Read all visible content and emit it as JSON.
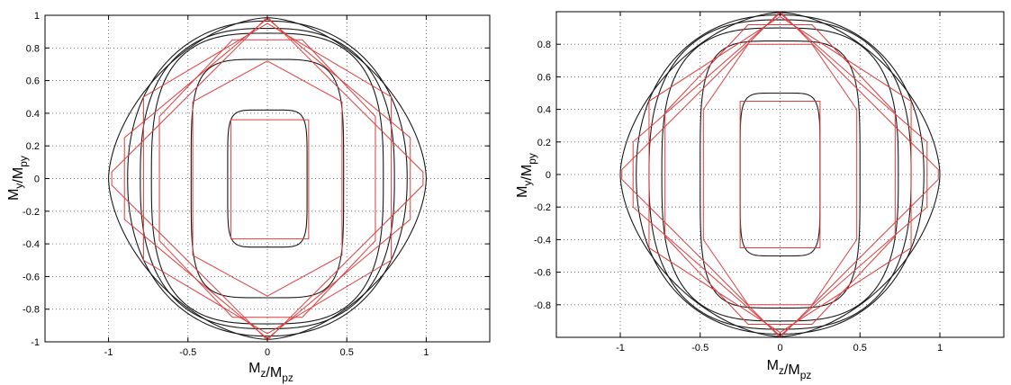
{
  "chart_data": [
    {
      "type": "line",
      "title": "",
      "xlabel": "M_z/M_pz",
      "ylabel": "M_y/M_py",
      "xlim": [
        -1.4,
        1.4
      ],
      "ylim": [
        -1.0,
        1.0
      ],
      "xticks": [
        -1,
        -0.5,
        0,
        0.5,
        1
      ],
      "yticks": [
        -1,
        -0.8,
        -0.6,
        -0.4,
        -0.2,
        0,
        0.2,
        0.4,
        0.6,
        0.8,
        1
      ],
      "xtick_labels": [
        "-1",
        "-0.5",
        "0",
        "0.5",
        "1"
      ],
      "ytick_labels": [
        "-1",
        "-0.8",
        "-0.6",
        "-0.4",
        "-0.2",
        "0",
        "0.2",
        "0.4",
        "0.6",
        "0.8",
        "1"
      ],
      "grid": true,
      "series": [
        {
          "color": "#1a1a1a",
          "kind": "smooth",
          "a": 1.0,
          "b": 0.985,
          "p": 1.7
        },
        {
          "color": "#1a1a1a",
          "kind": "smooth",
          "a": 0.88,
          "b": 0.965,
          "p": 2.2
        },
        {
          "color": "#1a1a1a",
          "kind": "smooth",
          "a": 0.8,
          "b": 0.92,
          "p": 2.6
        },
        {
          "color": "#1a1a1a",
          "kind": "smooth",
          "a": 0.73,
          "b": 0.89,
          "p": 3.0
        },
        {
          "color": "#1a1a1a",
          "kind": "smooth",
          "a": 0.48,
          "b": 0.73,
          "p": 4.5
        },
        {
          "color": "#1a1a1a",
          "kind": "smooth",
          "a": 0.25,
          "b": 0.42,
          "p": 6.0
        },
        {
          "color": "#e03c3c",
          "kind": "poly",
          "x": [
            0.26,
            0.26,
            -0.23,
            -0.23,
            0.26
          ],
          "y": [
            0.36,
            -0.37,
            -0.37,
            0.36,
            0.36
          ]
        },
        {
          "color": "#e03c3c",
          "kind": "poly",
          "x": [
            0,
            0.47,
            0.47,
            0,
            -0.47,
            -0.47,
            0
          ],
          "y": [
            0.72,
            0.47,
            -0.47,
            -0.72,
            -0.47,
            0.47,
            0.72
          ]
        },
        {
          "color": "#e03c3c",
          "kind": "poly",
          "x": [
            -0.22,
            0.22,
            0.68,
            0.68,
            0.22,
            -0.22,
            -0.68,
            -0.68,
            -0.22
          ],
          "y": [
            0.85,
            0.85,
            0.38,
            -0.38,
            -0.85,
            -0.85,
            -0.38,
            0.38,
            0.85
          ]
        },
        {
          "color": "#e03c3c",
          "kind": "poly",
          "x": [
            0,
            0.78,
            0.78,
            0,
            -0.78,
            -0.78,
            0
          ],
          "y": [
            0.95,
            0.5,
            -0.5,
            -0.95,
            -0.5,
            0.5,
            0.95
          ]
        },
        {
          "color": "#e03c3c",
          "kind": "poly",
          "x": [
            0,
            0.9,
            0.9,
            0,
            -0.9,
            -0.9,
            0
          ],
          "y": [
            0.98,
            0.25,
            -0.25,
            -0.98,
            -0.25,
            0.25,
            0.98
          ]
        },
        {
          "color": "#e03c3c",
          "kind": "poly",
          "x": [
            0,
            0.98,
            0.98,
            0,
            -0.98,
            -0.98,
            0
          ],
          "y": [
            0.99,
            0.04,
            -0.04,
            -0.99,
            -0.04,
            0.04,
            0.99
          ]
        }
      ]
    },
    {
      "type": "line",
      "title": "",
      "xlabel": "M_z/M_pz",
      "ylabel": "M_y/M_py",
      "xlim": [
        -1.4,
        1.4
      ],
      "ylim": [
        -1.0,
        1.0
      ],
      "xticks": [
        -1,
        -0.5,
        0,
        0.5,
        1
      ],
      "yticks": [
        -0.8,
        -0.6,
        -0.4,
        -0.2,
        0,
        0.2,
        0.4,
        0.6,
        0.8
      ],
      "xtick_labels": [
        "-1",
        "-0.5",
        "0",
        "0.5",
        "1"
      ],
      "ytick_labels": [
        "-0.8",
        "-0.6",
        "-0.4",
        "-0.2",
        "0",
        "0.2",
        "0.4",
        "0.6",
        "0.8"
      ],
      "grid": true,
      "series": [
        {
          "color": "#1a1a1a",
          "kind": "smooth",
          "a": 1.0,
          "b": 0.995,
          "p": 1.7
        },
        {
          "color": "#1a1a1a",
          "kind": "smooth",
          "a": 0.9,
          "b": 0.98,
          "p": 2.2
        },
        {
          "color": "#1a1a1a",
          "kind": "smooth",
          "a": 0.82,
          "b": 0.95,
          "p": 2.6
        },
        {
          "color": "#1a1a1a",
          "kind": "smooth",
          "a": 0.74,
          "b": 0.9,
          "p": 3.0
        },
        {
          "color": "#1a1a1a",
          "kind": "smooth",
          "a": 0.5,
          "b": 0.82,
          "p": 4.2
        },
        {
          "color": "#1a1a1a",
          "kind": "smooth",
          "a": 0.25,
          "b": 0.5,
          "p": 6.0
        },
        {
          "color": "#e03c3c",
          "kind": "poly",
          "x": [
            -0.25,
            0.25,
            0.25,
            -0.25,
            -0.25
          ],
          "y": [
            0.45,
            0.45,
            -0.45,
            -0.45,
            0.45
          ]
        },
        {
          "color": "#e03c3c",
          "kind": "poly",
          "x": [
            -0.2,
            0.2,
            0.48,
            0.48,
            0.2,
            -0.2,
            -0.48,
            -0.48,
            -0.2
          ],
          "y": [
            0.8,
            0.8,
            0.4,
            -0.4,
            -0.8,
            -0.8,
            -0.4,
            0.4,
            0.8
          ]
        },
        {
          "color": "#e03c3c",
          "kind": "poly",
          "x": [
            -0.2,
            0.2,
            0.72,
            0.72,
            0.2,
            -0.2,
            -0.72,
            -0.72,
            -0.2
          ],
          "y": [
            0.92,
            0.92,
            0.38,
            -0.38,
            -0.92,
            -0.92,
            -0.38,
            0.38,
            0.92
          ]
        },
        {
          "color": "#e03c3c",
          "kind": "poly",
          "x": [
            0,
            0.82,
            0.82,
            0,
            -0.82,
            -0.82,
            0
          ],
          "y": [
            0.97,
            0.45,
            -0.45,
            -0.97,
            -0.45,
            0.45,
            0.97
          ]
        },
        {
          "color": "#e03c3c",
          "kind": "poly",
          "x": [
            0,
            0.92,
            0.92,
            0,
            -0.92,
            -0.92,
            0
          ],
          "y": [
            0.99,
            0.2,
            -0.2,
            -0.99,
            -0.2,
            0.2,
            0.99
          ]
        },
        {
          "color": "#e03c3c",
          "kind": "poly",
          "x": [
            0,
            0.99,
            0.99,
            0,
            -0.99,
            -0.99,
            0
          ],
          "y": [
            1.0,
            0.03,
            -0.03,
            -1.0,
            -0.03,
            0.03,
            1.0
          ]
        }
      ]
    }
  ]
}
